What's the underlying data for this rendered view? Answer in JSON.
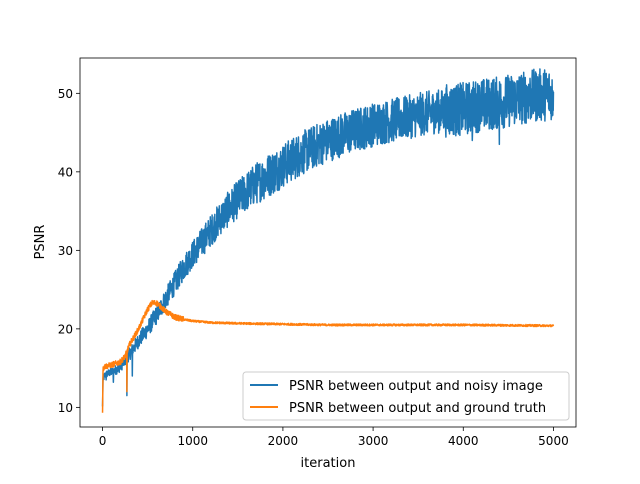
{
  "chart_data": {
    "type": "line",
    "title": "",
    "xlabel": "iteration",
    "ylabel": "PSNR",
    "xlim": [
      -250,
      5250
    ],
    "ylim": [
      7.5,
      54.5
    ],
    "xticks": [
      0,
      1000,
      2000,
      3000,
      4000,
      5000
    ],
    "xtick_labels": [
      "0",
      "1000",
      "2000",
      "3000",
      "4000",
      "5000"
    ],
    "yticks": [
      10,
      20,
      30,
      40,
      50
    ],
    "ytick_labels": [
      "10",
      "20",
      "30",
      "40",
      "50"
    ],
    "grid": false,
    "legend_position": "bottom-right",
    "series": [
      {
        "name": "PSNR between output and noisy image",
        "color": "#1f77b4",
        "noise_amplitude": 1.0,
        "x": [
          0,
          5,
          20,
          50,
          100,
          150,
          200,
          250,
          300,
          400,
          500,
          600,
          700,
          800,
          900,
          1000,
          1100,
          1200,
          1300,
          1400,
          1500,
          1600,
          1700,
          1800,
          1900,
          2000,
          2200,
          2400,
          2600,
          2800,
          3000,
          3200,
          3400,
          3600,
          3800,
          4000,
          4200,
          4400,
          4600,
          4800,
          5000
        ],
        "y": [
          10.0,
          13.5,
          14.0,
          14.3,
          14.5,
          14.8,
          15.2,
          16.0,
          16.8,
          18.5,
          20.0,
          21.8,
          23.8,
          25.8,
          27.8,
          29.5,
          31.0,
          32.5,
          34.0,
          35.3,
          36.5,
          37.5,
          38.5,
          39.3,
          40.0,
          40.8,
          42.3,
          43.5,
          44.5,
          45.3,
          46.0,
          46.5,
          47.0,
          47.5,
          47.8,
          48.0,
          48.5,
          48.8,
          49.3,
          49.7,
          50.0
        ],
        "dips": [
          [
            40,
            13.5
          ],
          [
            120,
            13.2
          ],
          [
            270,
            11.5
          ],
          [
            330,
            14.0
          ],
          [
            4100,
            44.0
          ],
          [
            4400,
            43.5
          ],
          [
            4980,
            47.0
          ]
        ]
      },
      {
        "name": "PSNR between output and ground truth",
        "color": "#ff7f0e",
        "noise_amplitude": 0.2,
        "x": [
          0,
          5,
          20,
          100,
          200,
          250,
          300,
          400,
          500,
          550,
          600,
          650,
          700,
          800,
          900,
          1000,
          1200,
          1500,
          2000,
          2500,
          3000,
          3500,
          4000,
          4500,
          5000
        ],
        "y": [
          9.5,
          14.8,
          15.2,
          15.4,
          15.8,
          16.5,
          18.0,
          20.0,
          22.5,
          23.3,
          23.3,
          22.8,
          22.2,
          21.5,
          21.2,
          21.0,
          20.8,
          20.7,
          20.6,
          20.5,
          20.5,
          20.5,
          20.5,
          20.45,
          20.4
        ],
        "dips": [
          [
            270,
            12.0
          ]
        ]
      }
    ]
  }
}
